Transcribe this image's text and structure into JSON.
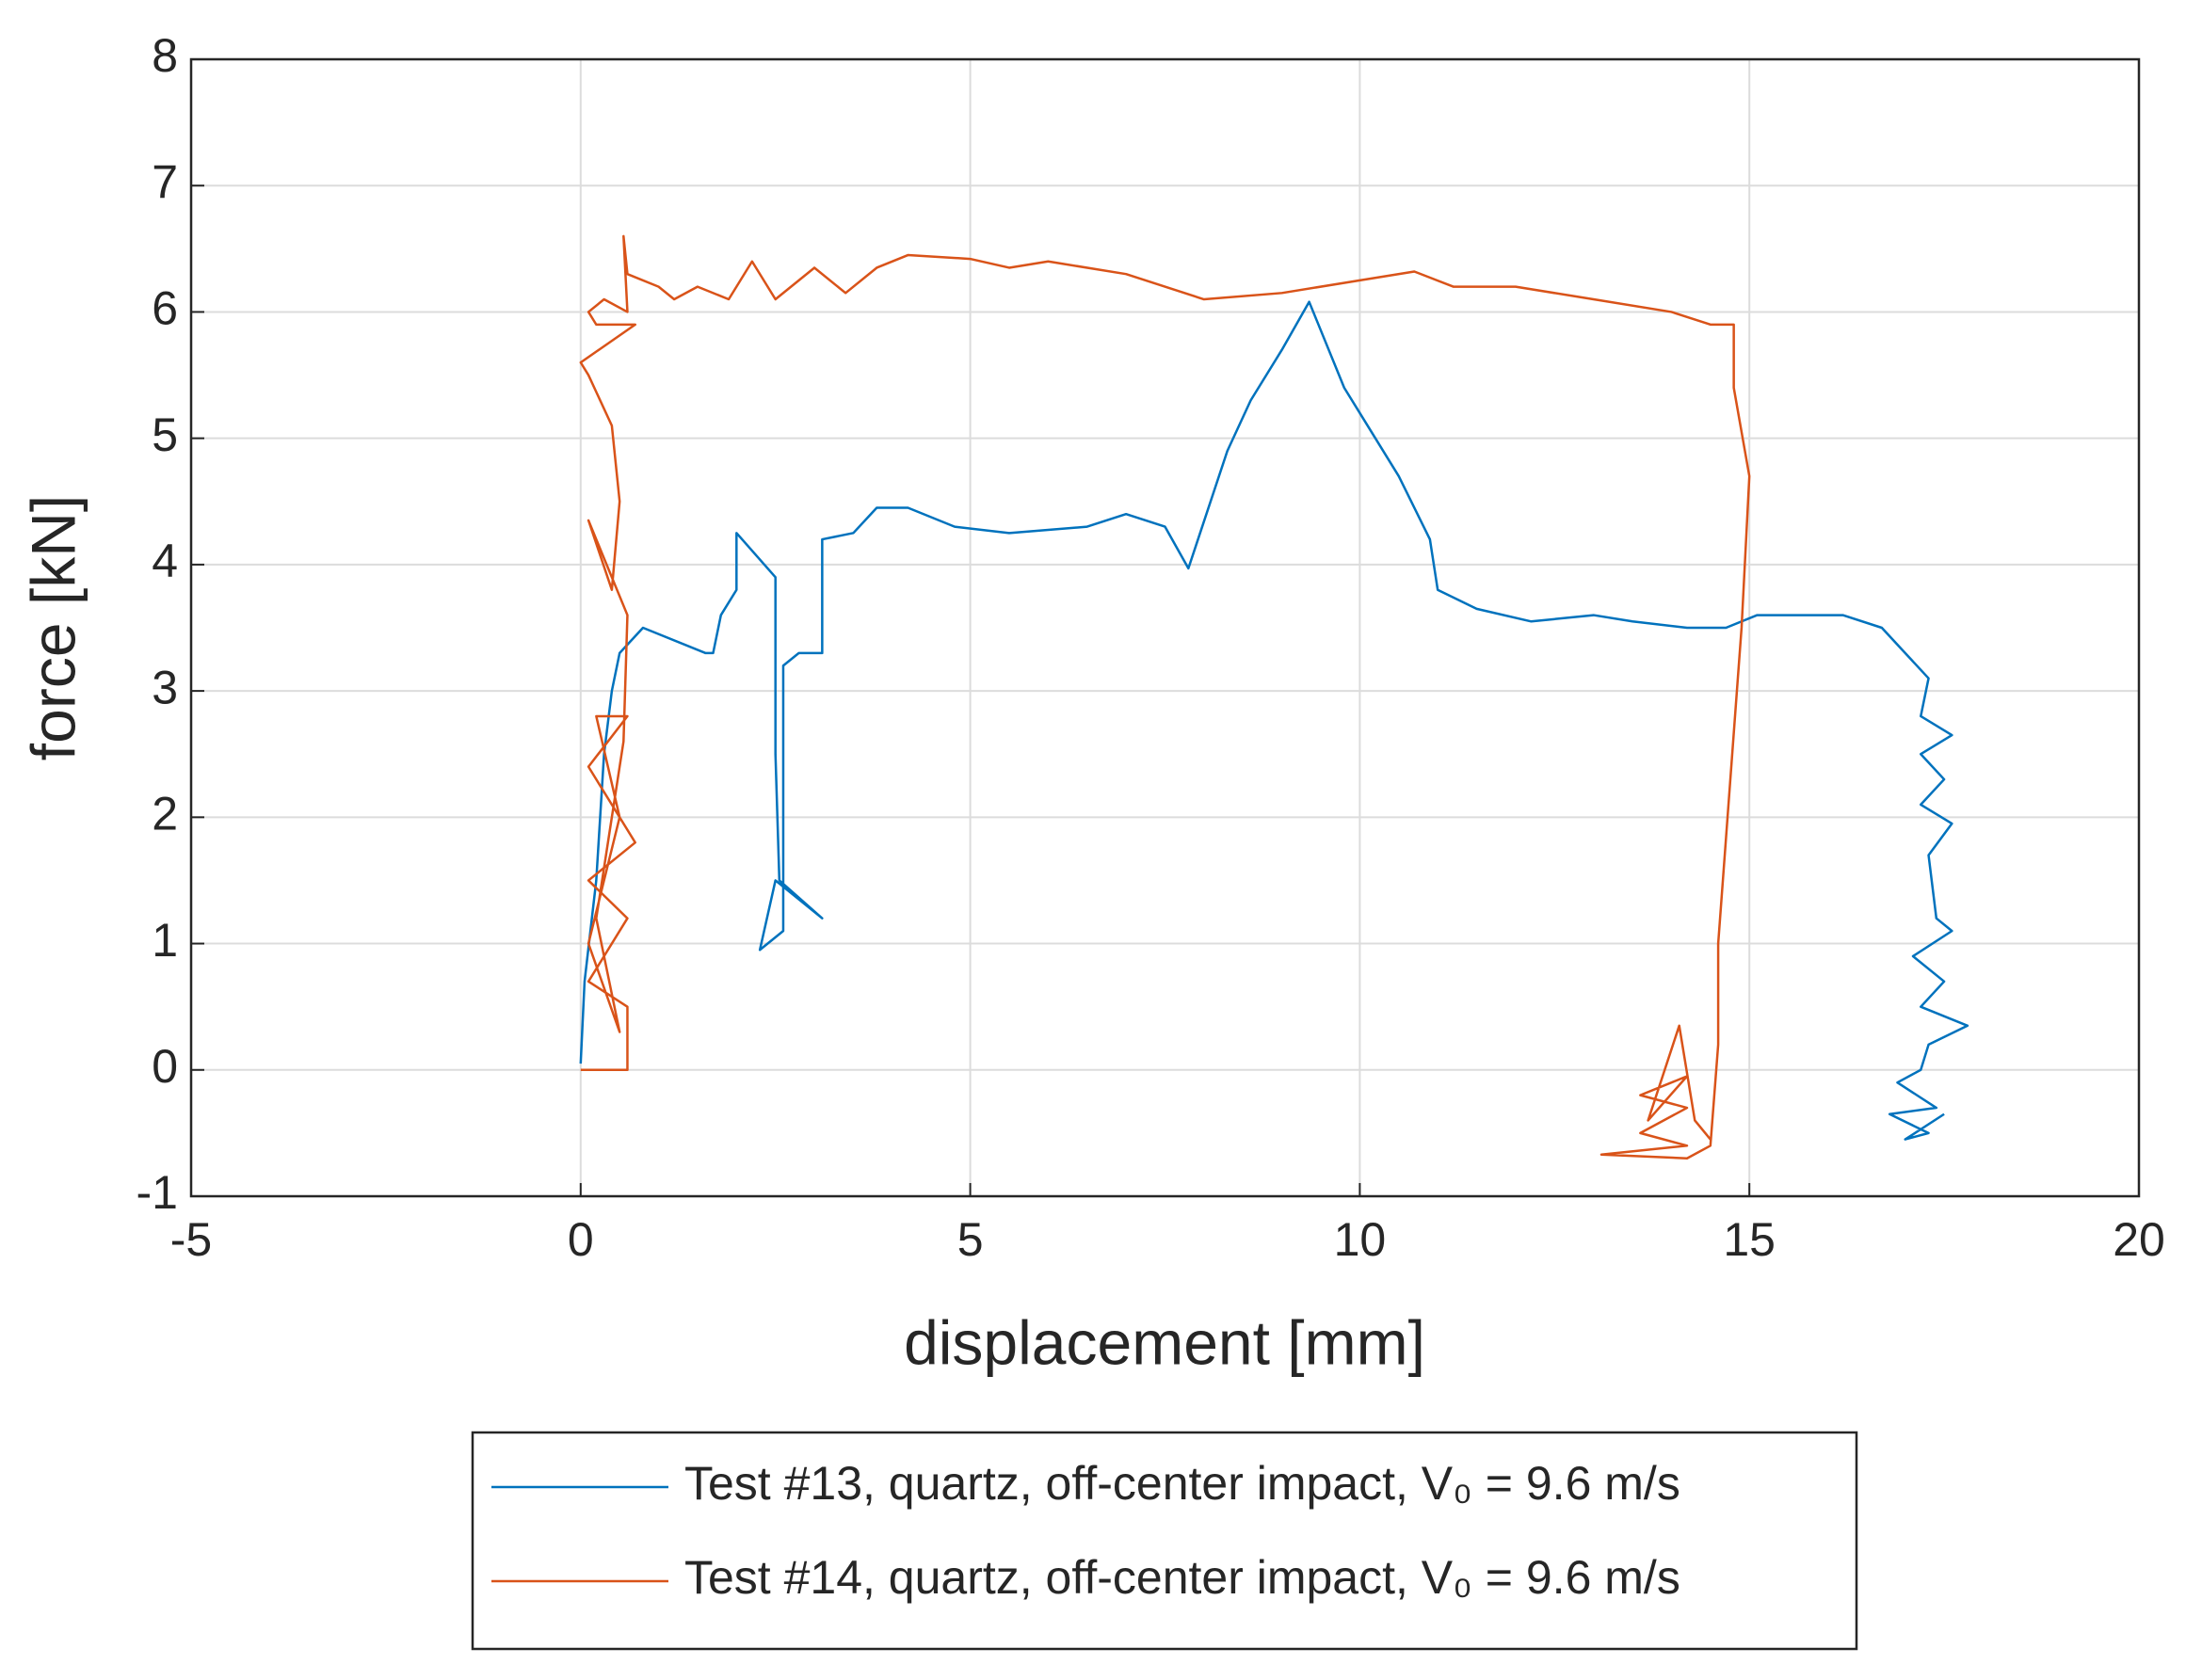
{
  "chart_data": {
    "type": "line",
    "xlabel": "displacement [mm]",
    "ylabel": "force [kN]",
    "xlim": [
      -5,
      20
    ],
    "xticks": [
      -5,
      0,
      5,
      10,
      15,
      20
    ],
    "ylim": [
      -1,
      8
    ],
    "yticks": [
      -1,
      0,
      1,
      2,
      3,
      4,
      5,
      6,
      7,
      8
    ],
    "grid": true,
    "legend": "bottom",
    "series": [
      {
        "name": "Test #13, quartz, off-center impact, V₀ = 9.6 m/s",
        "color": "#0072bd",
        "x": [
          0,
          0.05,
          0.2,
          0.3,
          0.4,
          0.5,
          0.8,
          1.6,
          1.7,
          1.8,
          2.0,
          2.0,
          2.5,
          2.5,
          2.55,
          3.1,
          2.5,
          2.3,
          2.6,
          2.6,
          2.8,
          3.1,
          3.1,
          3.5,
          3.8,
          4.2,
          4.8,
          5.5,
          6.5,
          7.0,
          7.5,
          7.8,
          8.3,
          8.6,
          9.0,
          9.35,
          9.8,
          10.0,
          10.5,
          10.9,
          11.0,
          11.5,
          12.2,
          13.0,
          13.5,
          14.2,
          14.7,
          15.1,
          16.2,
          16.7,
          17.0,
          17.3,
          17.2,
          17.6,
          17.2,
          17.5,
          17.2,
          17.6,
          17.3,
          17.4,
          17.6,
          17.1,
          17.5,
          17.2,
          17.8,
          17.3,
          17.2,
          16.9,
          17.4,
          16.8,
          17.3,
          17.0,
          17.5
        ],
        "values": [
          0.05,
          0.7,
          1.5,
          2.5,
          3.0,
          3.3,
          3.5,
          3.3,
          3.3,
          3.6,
          3.8,
          4.25,
          3.9,
          2.5,
          1.5,
          1.2,
          1.5,
          0.95,
          1.1,
          3.2,
          3.3,
          3.3,
          4.2,
          4.25,
          4.45,
          4.45,
          4.3,
          4.25,
          4.3,
          4.4,
          4.3,
          3.97,
          4.9,
          5.3,
          5.7,
          6.08,
          5.4,
          5.2,
          4.7,
          4.2,
          3.8,
          3.65,
          3.55,
          3.6,
          3.55,
          3.5,
          3.5,
          3.6,
          3.6,
          3.5,
          3.3,
          3.1,
          2.8,
          2.65,
          2.5,
          2.3,
          2.1,
          1.95,
          1.7,
          1.2,
          1.1,
          0.9,
          0.7,
          0.5,
          0.35,
          0.2,
          0,
          -0.1,
          -0.3,
          -0.35,
          -0.5,
          -0.55,
          -0.35
        ]
      },
      {
        "name": "Test #14, quartz, off-center impact, V₀ = 9.6 m/s",
        "color": "#d95319",
        "x": [
          0,
          0.6,
          0.6,
          0.1,
          0.6,
          0.1,
          0.7,
          0.1,
          0.6,
          0.2,
          0.5,
          0.1,
          0.5,
          0.2,
          0.55,
          0.6,
          0.4,
          0.1,
          0.4,
          0.5,
          0.4,
          0.1,
          0.0,
          0.7,
          0.2,
          0.1,
          0.3,
          0.6,
          0.55,
          0.6,
          1.0,
          1.2,
          1.5,
          1.9,
          2.2,
          2.5,
          3.0,
          3.4,
          3.8,
          4.2,
          5.0,
          5.5,
          6.0,
          7.0,
          8.0,
          9.0,
          10.0,
          10.7,
          11.2,
          12.0,
          13.0,
          14.0,
          14.5,
          14.8,
          14.8,
          15.0,
          14.9,
          14.6,
          14.6,
          14.5,
          14.2,
          13.1,
          14.2,
          13.6,
          14.2,
          13.6,
          14.2,
          13.7,
          14.1,
          14.3,
          14.5
        ],
        "values": [
          0,
          0,
          0.5,
          0.7,
          1.2,
          1.5,
          1.8,
          2.4,
          2.8,
          2.8,
          2.0,
          1.0,
          0.3,
          1.2,
          2.6,
          3.6,
          3.9,
          4.35,
          3.8,
          4.5,
          5.1,
          5.5,
          5.6,
          5.9,
          5.9,
          6.0,
          6.1,
          6.0,
          6.6,
          6.3,
          6.2,
          6.1,
          6.2,
          6.1,
          6.4,
          6.1,
          6.35,
          6.15,
          6.35,
          6.45,
          6.42,
          6.35,
          6.4,
          6.3,
          6.1,
          6.15,
          6.25,
          6.32,
          6.2,
          6.2,
          6.1,
          6.0,
          5.9,
          5.9,
          5.4,
          4.7,
          3.5,
          1.0,
          0.2,
          -0.6,
          -0.7,
          -0.67,
          -0.6,
          -0.5,
          -0.3,
          -0.2,
          -0.05,
          -0.4,
          0.35,
          -0.4,
          -0.55
        ]
      }
    ]
  }
}
